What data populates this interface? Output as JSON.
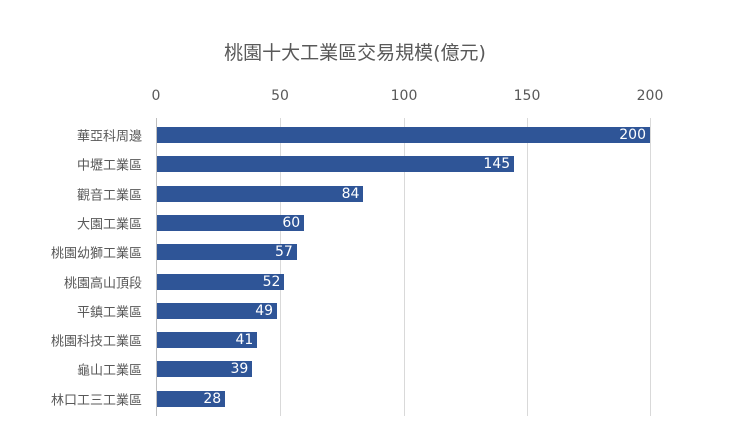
{
  "chart_data": {
    "type": "bar",
    "orientation": "horizontal",
    "title": "桃園十大工業區交易規模(億元)",
    "xlabel": "",
    "ylabel": "",
    "xlim": [
      0,
      200
    ],
    "x_ticks": [
      "0",
      "50",
      "100",
      "150",
      "200"
    ],
    "x_axis_position": "top",
    "grid": true,
    "legend": null,
    "bar_color": "#2f5597",
    "categories": [
      "華亞科周邊",
      "中壢工業區",
      "觀音工業區",
      "大園工業區",
      "桃園幼獅工業區",
      "桃園高山頂段",
      "平鎮工業區",
      "桃園科技工業區",
      "龜山工業區",
      "林口工三工業區"
    ],
    "values": [
      200,
      145,
      84,
      60,
      57,
      52,
      49,
      41,
      39,
      28
    ],
    "data_labels": [
      "200",
      "145",
      "84",
      "60",
      "57",
      "52",
      "49",
      "41",
      "39",
      "28"
    ]
  }
}
